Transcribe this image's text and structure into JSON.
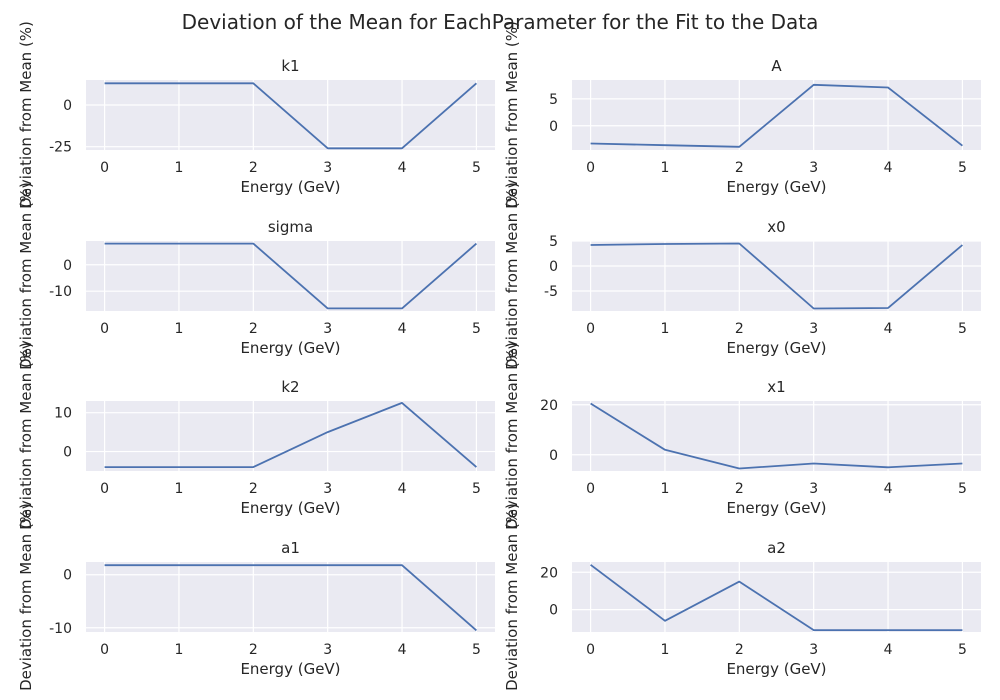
{
  "figure": {
    "title": "Deviation of the Mean for EachParameter for the Fit to the Data"
  },
  "colors": {
    "panel_background": "#EAEAF2",
    "grid": "#FFFFFF",
    "line": "#4C72B0",
    "text": "#262626"
  },
  "chart_data": [
    {
      "type": "line",
      "title": "k1",
      "xlabel": "Energy (GeV)",
      "ylabel": "Deviation from Mean (%)",
      "x": [
        0,
        1,
        2,
        3,
        4,
        5
      ],
      "y": [
        13,
        13,
        13,
        -26,
        -26,
        13
      ],
      "xlim": [
        -0.25,
        5.25
      ],
      "ylim": [
        -27,
        15
      ],
      "xticks": [
        0,
        1,
        2,
        3,
        4,
        5
      ],
      "yticks": [
        -25,
        0
      ],
      "grid": true
    },
    {
      "type": "line",
      "title": "A",
      "xlabel": "Energy (GeV)",
      "ylabel": "Deviation from Mean (%)",
      "x": [
        0,
        1,
        2,
        3,
        4,
        5
      ],
      "y": [
        -3.3,
        -3.6,
        -3.9,
        7.6,
        7.1,
        -3.7
      ],
      "xlim": [
        -0.25,
        5.25
      ],
      "ylim": [
        -4.5,
        8.5
      ],
      "xticks": [
        0,
        1,
        2,
        3,
        4,
        5
      ],
      "yticks": [
        0,
        5
      ],
      "grid": true
    },
    {
      "type": "line",
      "title": "sigma",
      "xlabel": "Energy (GeV)",
      "ylabel": "Deviation from Mean (%)",
      "x": [
        0,
        1,
        2,
        3,
        4,
        5
      ],
      "y": [
        8,
        8,
        8,
        -16.5,
        -16.5,
        8
      ],
      "xlim": [
        -0.25,
        5.25
      ],
      "ylim": [
        -17.5,
        9
      ],
      "xticks": [
        0,
        1,
        2,
        3,
        4,
        5
      ],
      "yticks": [
        -10,
        0
      ],
      "grid": true
    },
    {
      "type": "line",
      "title": "x0",
      "xlabel": "Energy (GeV)",
      "ylabel": "Deviation from Mean (%)",
      "x": [
        0,
        1,
        2,
        3,
        4,
        5
      ],
      "y": [
        4.2,
        4.4,
        4.5,
        -8.5,
        -8.4,
        4.2
      ],
      "xlim": [
        -0.25,
        5.25
      ],
      "ylim": [
        -9,
        5
      ],
      "xticks": [
        0,
        1,
        2,
        3,
        4,
        5
      ],
      "yticks": [
        -5,
        0,
        5
      ],
      "grid": true
    },
    {
      "type": "line",
      "title": "k2",
      "xlabel": "Energy (GeV)",
      "ylabel": "Deviation from Mean (%)",
      "x": [
        0,
        1,
        2,
        3,
        4,
        5
      ],
      "y": [
        -4,
        -4,
        -4,
        5,
        12.5,
        -4
      ],
      "xlim": [
        -0.25,
        5.25
      ],
      "ylim": [
        -5,
        13
      ],
      "xticks": [
        0,
        1,
        2,
        3,
        4,
        5
      ],
      "yticks": [
        0,
        10
      ],
      "grid": true
    },
    {
      "type": "line",
      "title": "x1",
      "xlabel": "Energy (GeV)",
      "ylabel": "Deviation from Mean (%)",
      "x": [
        0,
        1,
        2,
        3,
        4,
        5
      ],
      "y": [
        20.5,
        2,
        -5.5,
        -3.5,
        -5,
        -3.5
      ],
      "xlim": [
        -0.25,
        5.25
      ],
      "ylim": [
        -6.5,
        21.5
      ],
      "xticks": [
        0,
        1,
        2,
        3,
        4,
        5
      ],
      "yticks": [
        0,
        20
      ],
      "grid": true
    },
    {
      "type": "line",
      "title": "a1",
      "xlabel": "Energy (GeV)",
      "ylabel": "Deviation from Mean (%)",
      "x": [
        0,
        1,
        2,
        3,
        4,
        5
      ],
      "y": [
        1.8,
        1.8,
        1.8,
        1.8,
        1.8,
        -10.5
      ],
      "xlim": [
        -0.25,
        5.25
      ],
      "ylim": [
        -10.8,
        2.4
      ],
      "xticks": [
        0,
        1,
        2,
        3,
        4,
        5
      ],
      "yticks": [
        -10,
        0
      ],
      "grid": true
    },
    {
      "type": "line",
      "title": "a2",
      "xlabel": "Energy (GeV)",
      "ylabel": "Deviation from Mean (%)",
      "x": [
        0,
        1,
        2,
        3,
        4,
        5
      ],
      "y": [
        24,
        -6,
        15,
        -11,
        -11,
        -11
      ],
      "xlim": [
        -0.25,
        5.25
      ],
      "ylim": [
        -12,
        25.5
      ],
      "xticks": [
        0,
        1,
        2,
        3,
        4,
        5
      ],
      "yticks": [
        0,
        20
      ],
      "grid": true
    }
  ]
}
